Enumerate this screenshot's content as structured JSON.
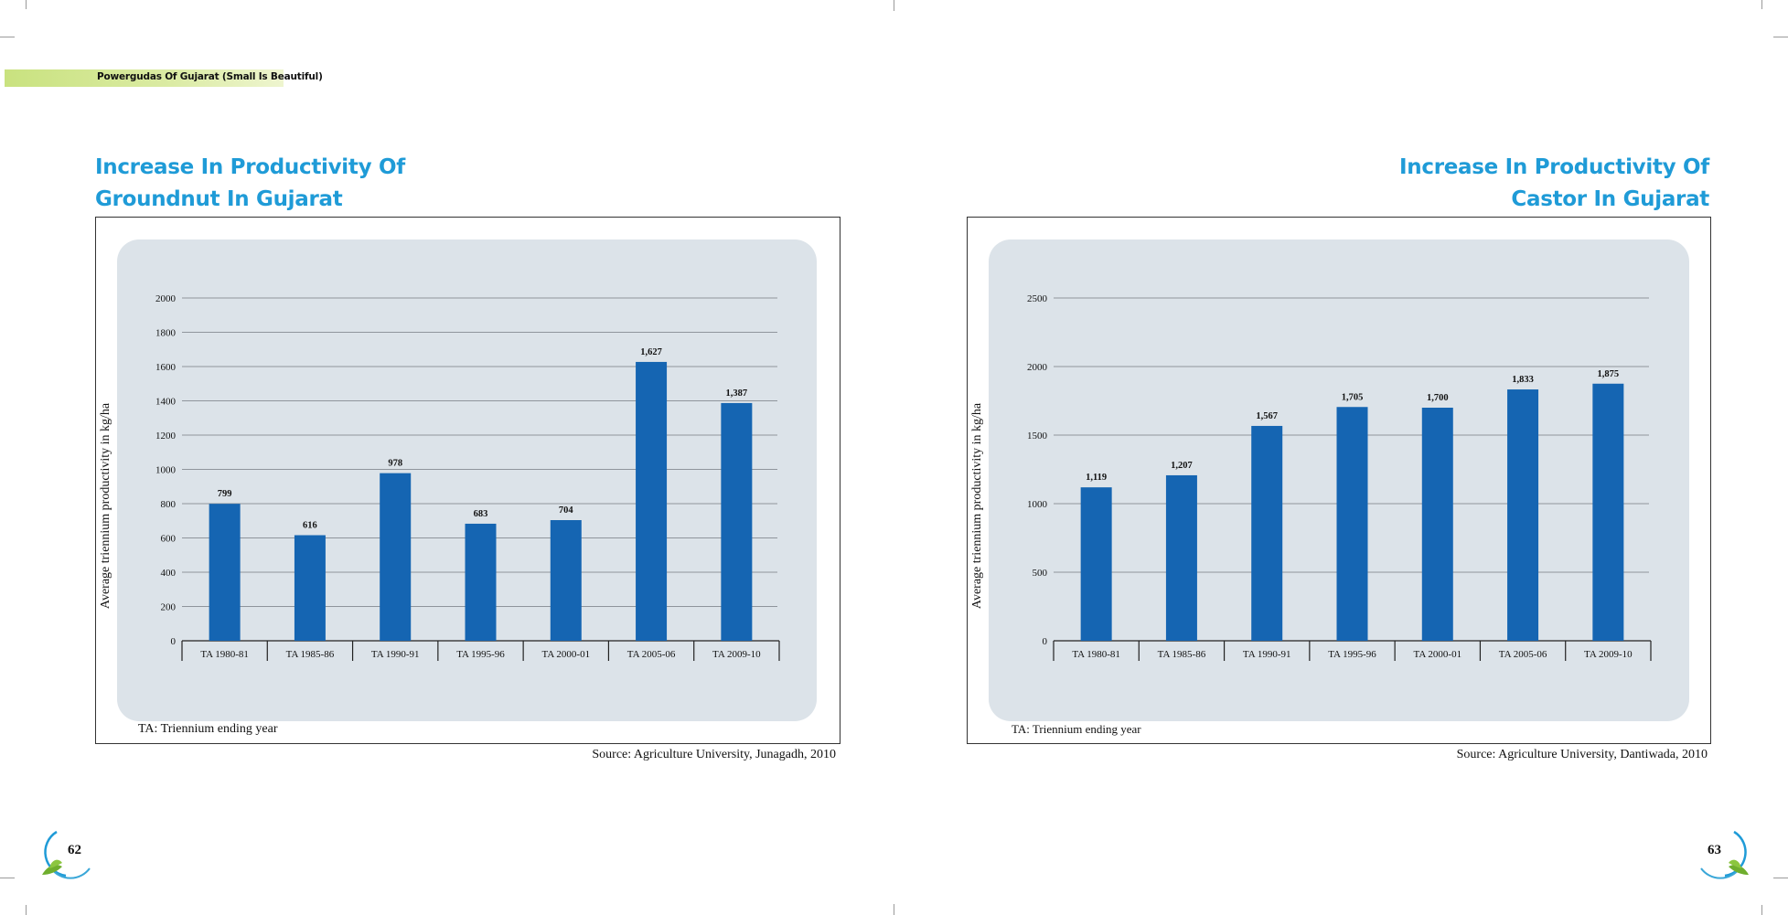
{
  "header": {
    "running_title": "Powergudas Of Gujarat (Small Is Beautiful)"
  },
  "pages": {
    "left": {
      "page_number": "62"
    },
    "right": {
      "page_number": "63"
    }
  },
  "charts_meta": [
    {
      "title_line1": "Increase In Productivity Of",
      "title_line2": "Groundnut In Gujarat",
      "note": "TA: Triennium ending year",
      "source": "Source: Agriculture University, Junagadh, 2010"
    },
    {
      "title_line1": "Increase In Productivity Of",
      "title_line2": "Castor In Gujarat",
      "note": "TA: Triennium ending year",
      "source": "Source: Agriculture University, Dantiwada, 2010"
    }
  ],
  "colors": {
    "bar": "#1565b2",
    "title": "#1f9bd7",
    "panel": "#dce3e9",
    "header_band": "#c9e27f"
  },
  "chart_data": [
    {
      "type": "bar",
      "title": "Increase In Productivity Of Groundnut In Gujarat",
      "categories": [
        "TA 1980-81",
        "TA 1985-86",
        "TA 1990-91",
        "TA 1995-96",
        "TA 2000-01",
        "TA 2005-06",
        "TA 2009-10"
      ],
      "values": [
        799,
        616,
        978,
        683,
        704,
        1627,
        1387
      ],
      "value_labels": [
        "799",
        "616",
        "978",
        "683",
        "704",
        "1,627",
        "1,387"
      ],
      "ylabel": "Average triennium productivity in kg/ha",
      "xlabel": "",
      "ylim": [
        0,
        2000
      ],
      "yticks": [
        0,
        200,
        400,
        600,
        800,
        1000,
        1200,
        1400,
        1600,
        1800,
        2000
      ],
      "grid": true
    },
    {
      "type": "bar",
      "title": "Increase In Productivity Of Castor In Gujarat",
      "categories": [
        "TA 1980-81",
        "TA 1985-86",
        "TA 1990-91",
        "TA 1995-96",
        "TA 2000-01",
        "TA 2005-06",
        "TA 2009-10"
      ],
      "values": [
        1119,
        1207,
        1567,
        1705,
        1700,
        1833,
        1875
      ],
      "value_labels": [
        "1,119",
        "1,207",
        "1,567",
        "1,705",
        "1,700",
        "1,833",
        "1,875"
      ],
      "ylabel": "Average triennium productivity in kg/ha",
      "xlabel": "",
      "ylim": [
        0,
        2500
      ],
      "yticks": [
        0,
        500,
        1000,
        1500,
        2000,
        2500
      ],
      "grid": true
    }
  ]
}
